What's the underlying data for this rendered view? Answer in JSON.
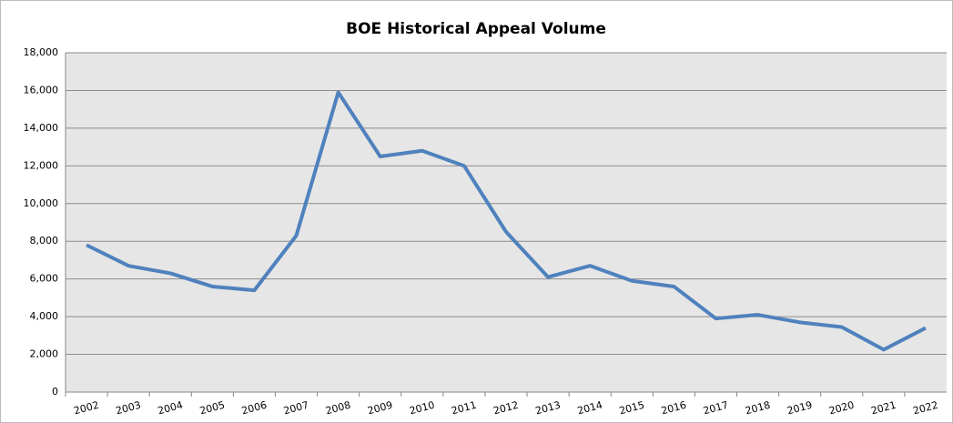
{
  "chart_data": {
    "type": "line",
    "title": "BOE Historical Appeal Volume",
    "categories": [
      "2002",
      "2003",
      "2004",
      "2005",
      "2006",
      "2007",
      "2008",
      "2009",
      "2010",
      "2011",
      "2012",
      "2013",
      "2014",
      "2015",
      "2016",
      "2017",
      "2018",
      "2019",
      "2020",
      "2021",
      "2022"
    ],
    "values": [
      7800,
      6700,
      6300,
      5600,
      5400,
      8300,
      15900,
      12500,
      12800,
      12000,
      8500,
      6100,
      6700,
      5900,
      5600,
      3900,
      4100,
      3700,
      3450,
      2250,
      3400
    ],
    "color": "#4f81bd",
    "ylim": [
      0,
      18000
    ],
    "yticks": [
      0,
      {
        "value": 2000,
        "label": "2,000"
      },
      {
        "value": 4000,
        "label": "4,000"
      },
      {
        "value": 6000,
        "label": "6,000"
      },
      {
        "value": 8000,
        "label": "8,000"
      },
      {
        "value": 10000,
        "label": "10,000"
      },
      {
        "value": 12000,
        "label": "12,000"
      },
      {
        "value": 14000,
        "label": "14,000"
      },
      {
        "value": 16000,
        "label": "16,000"
      },
      {
        "value": 18000,
        "label": "18,000"
      }
    ],
    "grid": true
  }
}
